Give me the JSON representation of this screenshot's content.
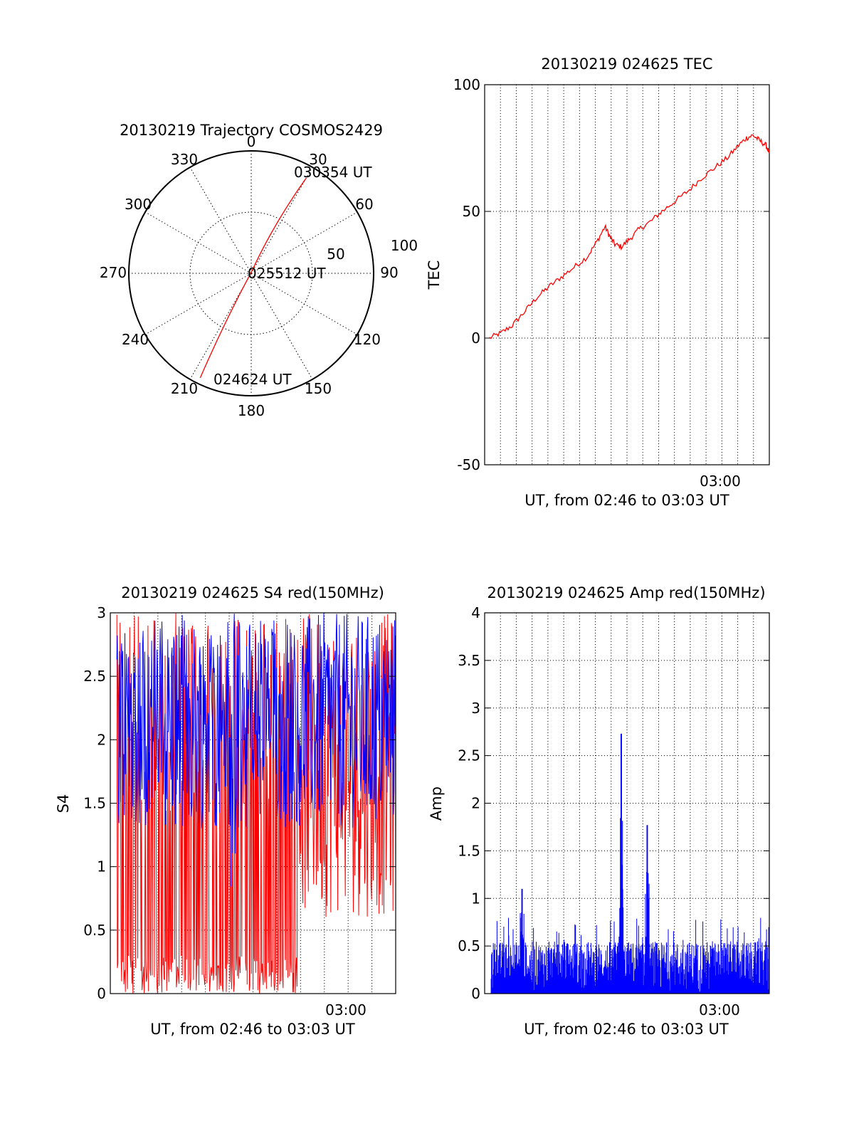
{
  "colors": {
    "background": "#ffffff",
    "axis": "#000000",
    "grid": "#000000",
    "red_series": "#ff0000",
    "blue_series": "#0000ff"
  },
  "chart_data": [
    {
      "type": "polar",
      "title": "20130219 Trajectory COSMOS2429",
      "angle_labels": [
        "0",
        "30",
        "60",
        "90",
        "120",
        "150",
        "180",
        "210",
        "240",
        "270",
        "300",
        "330"
      ],
      "radius_labels": [
        "50",
        "100"
      ],
      "radius_range": [
        0,
        100
      ],
      "grid": true,
      "track": {
        "color": "#ff0000",
        "points": [
          {
            "time": "030354 UT",
            "azimuth": 30,
            "radius": 90
          },
          {
            "time": "025512 UT",
            "azimuth": 20,
            "radius": 3
          },
          {
            "time": "024624 UT",
            "azimuth": 206,
            "radius": 95
          }
        ]
      },
      "point_labels": [
        "030354 UT",
        "025512 UT",
        "024624 UT"
      ]
    },
    {
      "type": "line",
      "title": "20130219 024625 TEC",
      "ylabel": "TEC",
      "xlabel": "UT, from 02:46 to 03:03 UT",
      "xlim_minutes": [
        46.3,
        63.8
      ],
      "ylim": [
        -50,
        100
      ],
      "yticks": [
        "100",
        "50",
        "0",
        "-50"
      ],
      "xticks": [
        "03:00"
      ],
      "grid": true,
      "series": [
        {
          "color": "#ff0000",
          "points": [
            [
              46.6,
              0
            ],
            [
              47.3,
              2
            ],
            [
              48.0,
              5
            ],
            [
              48.7,
              10
            ],
            [
              49.5,
              16
            ],
            [
              50.2,
              20
            ],
            [
              51.0,
              24
            ],
            [
              51.8,
              28
            ],
            [
              52.6,
              32
            ],
            [
              53.2,
              38
            ],
            [
              53.7,
              44
            ],
            [
              54.0,
              40
            ],
            [
              54.3,
              37
            ],
            [
              54.7,
              36
            ],
            [
              55.2,
              39
            ],
            [
              55.8,
              43
            ],
            [
              56.5,
              46
            ],
            [
              57.2,
              50
            ],
            [
              58.0,
              54
            ],
            [
              58.8,
              58
            ],
            [
              59.6,
              63
            ],
            [
              60.4,
              67
            ],
            [
              61.2,
              71
            ],
            [
              61.9,
              76
            ],
            [
              62.4,
              79
            ],
            [
              62.8,
              80
            ],
            [
              63.2,
              78
            ],
            [
              63.6,
              76
            ],
            [
              63.8,
              73
            ]
          ]
        }
      ]
    },
    {
      "type": "line",
      "title": "20130219 024625 S4 red(150MHz)",
      "ylabel": "S4",
      "xlabel": "UT, from 02:46 to 03:03 UT",
      "xlim_minutes": [
        46.3,
        63.8
      ],
      "ylim": [
        0,
        3
      ],
      "yticks": [
        "3",
        "2.5",
        "2",
        "1.5",
        "1",
        "0.5",
        "0"
      ],
      "xticks": [
        "03:00"
      ],
      "grid": true,
      "series": [
        {
          "color": "#ff0000",
          "description_values": {
            "dense_end_minute": 57.8,
            "range": [
              0,
              3
            ]
          }
        },
        {
          "color": "#0000ff",
          "description_values": {
            "range": [
              0.7,
              3
            ]
          }
        }
      ]
    },
    {
      "type": "line",
      "title": "20130219 024625 Amp red(150MHz)",
      "ylabel": "Amp",
      "xlabel": "UT, from 02:46 to 03:03 UT",
      "xlim_minutes": [
        46.3,
        63.8
      ],
      "ylim": [
        0,
        4
      ],
      "yticks": [
        "4",
        "3.5",
        "3",
        "2.5",
        "2",
        "1.5",
        "1",
        "0.5",
        "0"
      ],
      "xticks": [
        "03:00"
      ],
      "grid": true,
      "series": [
        {
          "color": "#0000ff",
          "peaks": [
            {
              "minute": 48.6,
              "value": 1.1
            },
            {
              "minute": 54.7,
              "value": 2.73
            },
            {
              "minute": 56.3,
              "value": 1.77
            }
          ],
          "baseline_range": [
            0,
            0.8
          ]
        }
      ]
    }
  ]
}
